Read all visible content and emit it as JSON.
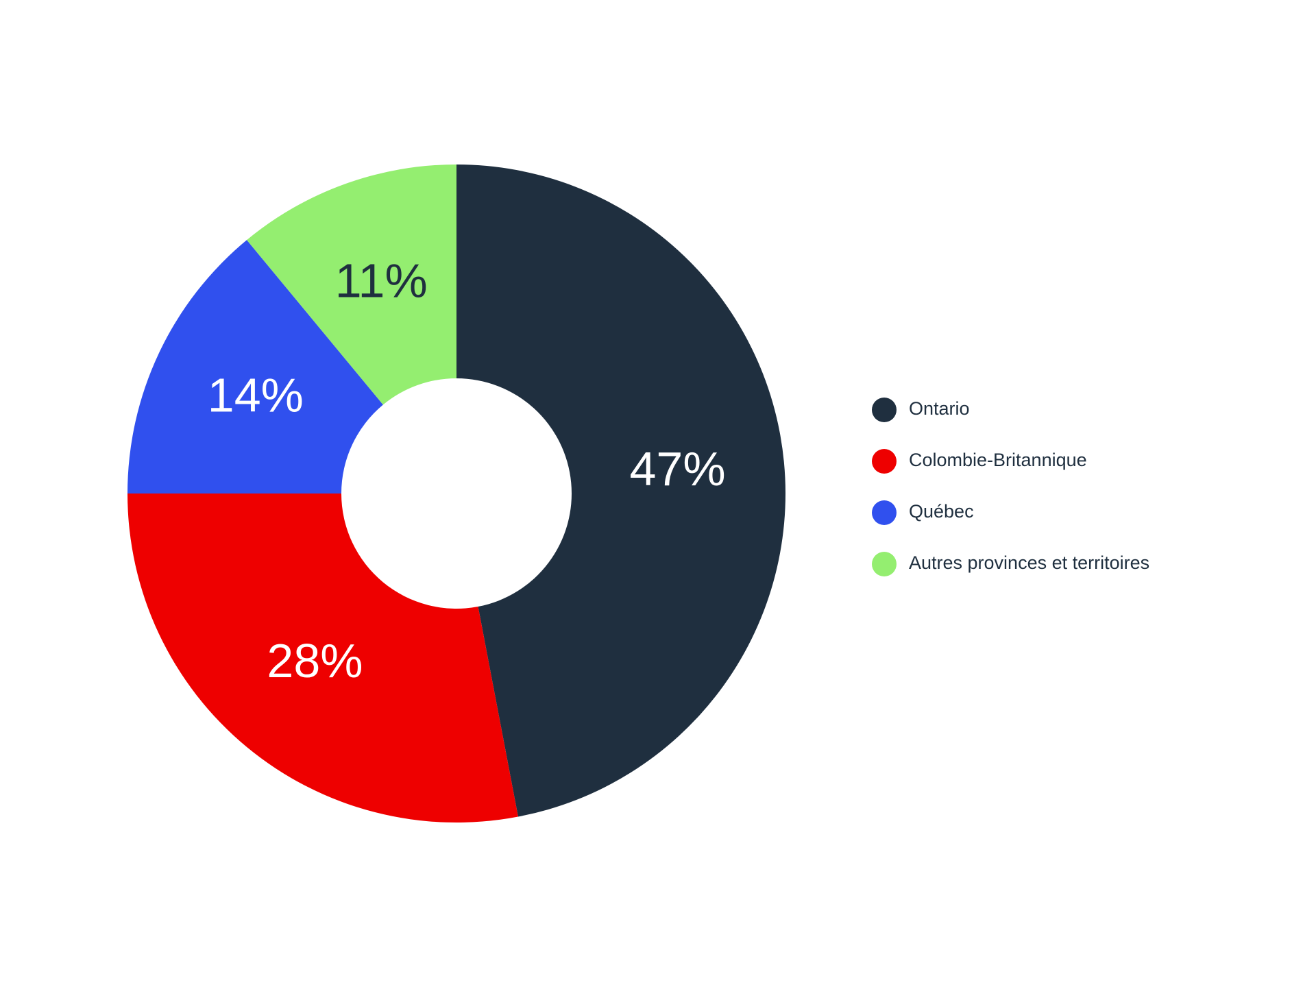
{
  "chart_data": {
    "type": "donut",
    "categories": [
      "Ontario",
      "Colombie-Britannique",
      "Québec",
      "Autres provinces et territoires"
    ],
    "values": [
      47,
      28,
      14,
      11
    ],
    "value_labels": [
      "47%",
      "28%",
      "14%",
      "11%"
    ],
    "colors": [
      "#1f2f3f",
      "#ee0000",
      "#3050ee",
      "#94ee70"
    ],
    "label_colors": [
      "#ffffff",
      "#ffffff",
      "#ffffff",
      "#1f2f3f"
    ],
    "legend": "right"
  }
}
